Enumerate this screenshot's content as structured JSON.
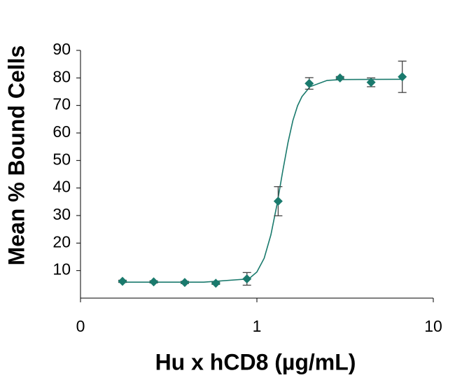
{
  "chart_data": {
    "type": "scatter",
    "x_label": "Hu x hCD8 (µg/mL)",
    "y_label": "Mean % Bound Cells",
    "x_scale": "log",
    "xlim": [
      0.1,
      10
    ],
    "xticks": [
      {
        "value": 0.1,
        "label": "0"
      },
      1,
      10
    ],
    "ylim": [
      0,
      90
    ],
    "yticks": [
      10,
      20,
      30,
      40,
      50,
      60,
      70,
      80,
      90
    ],
    "color": "#1a7a6d",
    "x": [
      0.173,
      0.26,
      0.39,
      0.585,
      0.878,
      1.32,
      1.98,
      2.96,
      4.44,
      6.67
    ],
    "values": [
      6.1,
      5.9,
      5.7,
      5.4,
      7.0,
      35.2,
      78.0,
      80.0,
      78.4,
      80.4
    ],
    "errors": [
      0.4,
      0.4,
      0.4,
      0.4,
      2.3,
      5.3,
      2.1,
      0.5,
      1.6,
      5.7
    ],
    "fit": {
      "x": [
        0.173,
        0.5,
        0.9,
        1.0,
        1.1,
        1.2,
        1.3,
        1.4,
        1.5,
        1.6,
        1.7,
        1.8,
        2.0,
        2.5,
        3.0,
        6.67
      ],
      "values": [
        5.8,
        5.8,
        7.0,
        9.5,
        14.5,
        23.0,
        34.0,
        46.0,
        56.5,
        64.5,
        69.9,
        73.2,
        76.8,
        79.1,
        79.4,
        79.5
      ]
    }
  }
}
